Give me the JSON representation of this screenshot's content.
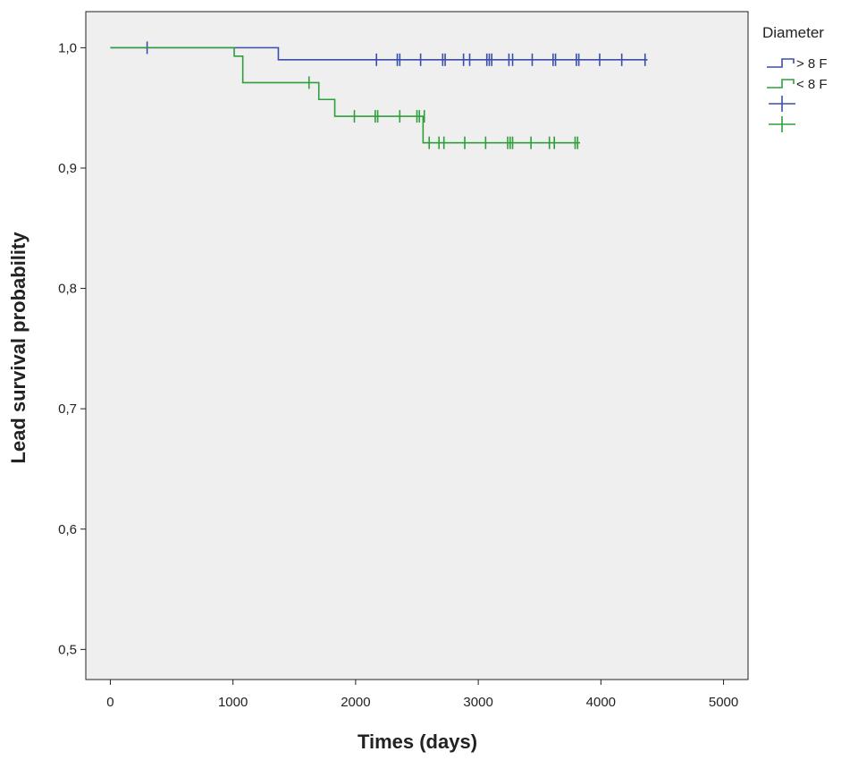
{
  "chart_data": {
    "type": "line",
    "subtype": "kaplan-meier",
    "title": "",
    "xlabel": "Times (days)",
    "ylabel": "Lead survival probability",
    "xlim": [
      -200,
      5200
    ],
    "ylim": [
      0.475,
      1.03
    ],
    "xticks": [
      0,
      1000,
      2000,
      3000,
      4000,
      5000
    ],
    "xtick_labels": [
      "0",
      "1000",
      "2000",
      "3000",
      "4000",
      "5000"
    ],
    "yticks": [
      0.5,
      0.6,
      0.7,
      0.8,
      0.9,
      1.0
    ],
    "ytick_labels": [
      "0,5",
      "0,6",
      "0,7",
      "0,8",
      "0,9",
      "1,0"
    ],
    "grid": false,
    "plot_background": "#efefef",
    "legend": {
      "title": "Diameter",
      "position": "right",
      "entries": [
        {
          "label": "> 8 F",
          "kind": "line",
          "color": "#3b4fa8"
        },
        {
          "label": "< 8 F",
          "kind": "line",
          "color": "#2e9f3a"
        },
        {
          "label": "",
          "kind": "censored",
          "color": "#3b4fa8"
        },
        {
          "label": "",
          "kind": "censored",
          "color": "#2e9f3a"
        }
      ]
    },
    "series": [
      {
        "name": "> 8 F",
        "color": "#3b4fa8",
        "steps": [
          [
            0,
            1.0
          ],
          [
            1370,
            0.99
          ],
          [
            4380,
            0.99
          ]
        ],
        "censored": [
          [
            300,
            1.0
          ],
          [
            2170,
            0.99
          ],
          [
            2340,
            0.99
          ],
          [
            2360,
            0.99
          ],
          [
            2530,
            0.99
          ],
          [
            2710,
            0.99
          ],
          [
            2730,
            0.99
          ],
          [
            2880,
            0.99
          ],
          [
            2930,
            0.99
          ],
          [
            3070,
            0.99
          ],
          [
            3090,
            0.99
          ],
          [
            3110,
            0.99
          ],
          [
            3250,
            0.99
          ],
          [
            3280,
            0.99
          ],
          [
            3440,
            0.99
          ],
          [
            3610,
            0.99
          ],
          [
            3630,
            0.99
          ],
          [
            3800,
            0.99
          ],
          [
            3820,
            0.99
          ],
          [
            3990,
            0.99
          ],
          [
            4170,
            0.99
          ],
          [
            4360,
            0.99
          ]
        ]
      },
      {
        "name": "< 8 F",
        "color": "#2e9f3a",
        "steps": [
          [
            0,
            1.0
          ],
          [
            1010,
            0.993
          ],
          [
            1080,
            0.971
          ],
          [
            1630,
            0.971
          ],
          [
            1700,
            0.957
          ],
          [
            1830,
            0.943
          ],
          [
            2550,
            0.943
          ],
          [
            2550,
            0.921
          ],
          [
            3830,
            0.921
          ]
        ],
        "censored": [
          [
            1620,
            0.971
          ],
          [
            1990,
            0.943
          ],
          [
            2160,
            0.943
          ],
          [
            2180,
            0.943
          ],
          [
            2360,
            0.943
          ],
          [
            2500,
            0.943
          ],
          [
            2520,
            0.943
          ],
          [
            2560,
            0.943
          ],
          [
            2600,
            0.921
          ],
          [
            2680,
            0.921
          ],
          [
            2720,
            0.921
          ],
          [
            2890,
            0.921
          ],
          [
            3060,
            0.921
          ],
          [
            3240,
            0.921
          ],
          [
            3260,
            0.921
          ],
          [
            3280,
            0.921
          ],
          [
            3430,
            0.921
          ],
          [
            3580,
            0.921
          ],
          [
            3620,
            0.921
          ],
          [
            3790,
            0.921
          ],
          [
            3810,
            0.921
          ]
        ]
      }
    ]
  }
}
